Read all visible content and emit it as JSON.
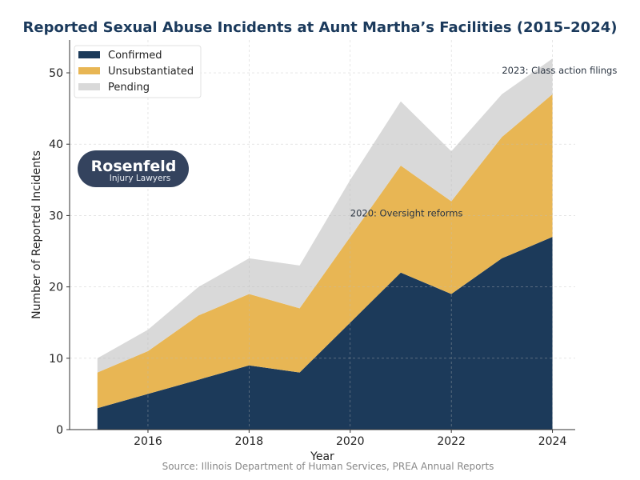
{
  "chart_data": {
    "type": "area",
    "stacked": true,
    "title": "Reported Sexual Abuse Incidents at Aunt Martha’s Facilities (2015–2024)",
    "xlabel": "Year",
    "ylabel": "Number of Reported Incidents",
    "source": "Source: Illinois Department of Human Services, PREA Annual Reports",
    "x": [
      2015,
      2016,
      2017,
      2018,
      2019,
      2020,
      2021,
      2022,
      2023,
      2024
    ],
    "series": [
      {
        "name": "Confirmed",
        "color": "#1c3a5a",
        "values": [
          3,
          5,
          7,
          9,
          8,
          15,
          22,
          19,
          24,
          27
        ]
      },
      {
        "name": "Unsubstantiated",
        "color": "#e8b654",
        "values": [
          5,
          6,
          9,
          10,
          9,
          12,
          15,
          13,
          17,
          20
        ]
      },
      {
        "name": "Pending",
        "color": "#d9d9d9",
        "values": [
          2,
          3,
          4,
          5,
          6,
          8,
          9,
          7,
          6,
          5
        ]
      }
    ],
    "xlim": [
      2014.45,
      2024.45
    ],
    "ylim": [
      0,
      54.6
    ],
    "xticks": [
      2016,
      2018,
      2020,
      2022,
      2024
    ],
    "yticks": [
      0,
      10,
      20,
      30,
      40,
      50
    ],
    "grid": true,
    "legend_position": "top-left",
    "annotations": [
      {
        "x": 2020,
        "y": 30,
        "text": "2020: Oversight reforms"
      },
      {
        "x": 2023,
        "y": 50,
        "text": "2023: Class action filings"
      }
    ]
  },
  "logo": {
    "line1": "Rosenfeld",
    "line2": "Injury Lawyers",
    "color": "#34435e"
  }
}
